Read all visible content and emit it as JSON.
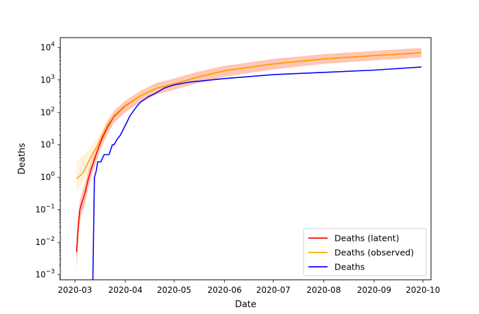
{
  "chart_data": {
    "type": "line",
    "xlabel": "Date",
    "ylabel": "Deaths",
    "yscale": "log",
    "ylim": [
      0.0007,
      20000
    ],
    "xlim": [
      "2020-02-21",
      "2020-10-06"
    ],
    "x_ticks": [
      "2020-03-01",
      "2020-04-01",
      "2020-05-01",
      "2020-06-01",
      "2020-07-01",
      "2020-08-01",
      "2020-09-01",
      "2020-10-01"
    ],
    "x_tick_labels": [
      "2020-03",
      "2020-04",
      "2020-05",
      "2020-06",
      "2020-07",
      "2020-08",
      "2020-09",
      "2020-10"
    ],
    "y_ticks": [
      0.001,
      0.01,
      0.1,
      1,
      10,
      100,
      1000,
      10000
    ],
    "y_tick_labels": [
      {
        "base": "10",
        "exp": "−3"
      },
      {
        "base": "10",
        "exp": "−2"
      },
      {
        "base": "10",
        "exp": "−1"
      },
      {
        "base": "10",
        "exp": "0"
      },
      {
        "base": "10",
        "exp": "1"
      },
      {
        "base": "10",
        "exp": "2"
      },
      {
        "base": "10",
        "exp": "3"
      },
      {
        "base": "10",
        "exp": "4"
      }
    ],
    "grid": false,
    "legend_position": "bottom-right",
    "series": [
      {
        "name": "Deaths (latent)",
        "color": "#ff0000",
        "band_color": "#ff5a2a",
        "band_opacity": 0.35,
        "x": [
          "2020-03-02",
          "2020-03-03",
          "2020-03-04",
          "2020-03-05",
          "2020-03-07",
          "2020-03-09",
          "2020-03-11",
          "2020-03-14",
          "2020-03-17",
          "2020-03-21",
          "2020-03-25",
          "2020-04-01",
          "2020-04-10",
          "2020-04-20",
          "2020-05-01",
          "2020-05-15",
          "2020-06-01",
          "2020-07-01",
          "2020-08-01",
          "2020-09-01",
          "2020-09-30"
        ],
        "y": [
          0.005,
          0.03,
          0.1,
          0.15,
          0.3,
          0.8,
          1.8,
          5,
          13,
          35,
          75,
          160,
          320,
          550,
          750,
          1200,
          1900,
          3100,
          4400,
          5600,
          6800
        ],
        "lower": [
          0.0014,
          0.01,
          0.04,
          0.07,
          0.15,
          0.4,
          1.0,
          3,
          8,
          22,
          48,
          100,
          200,
          350,
          500,
          780,
          1250,
          2100,
          3100,
          4000,
          4900
        ],
        "upper": [
          0.012,
          0.07,
          0.2,
          0.3,
          0.6,
          1.5,
          3.2,
          8,
          20,
          55,
          110,
          230,
          450,
          800,
          1100,
          1750,
          2700,
          4400,
          6200,
          7800,
          9600
        ]
      },
      {
        "name": "Deaths (observed)",
        "color": "#ffa500",
        "band_color": "#ffd9a0",
        "band_opacity": 0.35,
        "x": [
          "2020-03-02",
          "2020-03-04",
          "2020-03-06",
          "2020-03-08",
          "2020-03-10",
          "2020-03-12",
          "2020-03-14",
          "2020-03-17",
          "2020-03-21",
          "2020-03-25",
          "2020-04-01",
          "2020-04-10",
          "2020-04-20",
          "2020-05-01",
          "2020-05-15",
          "2020-06-01",
          "2020-07-01",
          "2020-08-01",
          "2020-09-01",
          "2020-09-30"
        ],
        "y": [
          0.9,
          1.1,
          1.4,
          2.2,
          3.5,
          5.5,
          8,
          16,
          40,
          80,
          165,
          320,
          550,
          750,
          1200,
          1900,
          3100,
          4400,
          5600,
          6800
        ],
        "lower": [
          0.4,
          0.5,
          0.7,
          1.2,
          2.0,
          3.4,
          5.5,
          12,
          30,
          62,
          130,
          260,
          450,
          620,
          1000,
          1600,
          2700,
          3800,
          4900,
          5900
        ],
        "upper": [
          3.2,
          3.8,
          4.5,
          6,
          8,
          11,
          14,
          24,
          55,
          100,
          205,
          390,
          670,
          900,
          1450,
          2250,
          3600,
          5000,
          6400,
          7800
        ]
      },
      {
        "name": "Deaths",
        "color": "#0000ff",
        "x": [
          "2020-03-12",
          "2020-03-13",
          "2020-03-14",
          "2020-03-15",
          "2020-03-16",
          "2020-03-17",
          "2020-03-18",
          "2020-03-19",
          "2020-03-20",
          "2020-03-22",
          "2020-03-24",
          "2020-03-25",
          "2020-03-27",
          "2020-03-29",
          "2020-04-01",
          "2020-04-04",
          "2020-04-07",
          "2020-04-10",
          "2020-04-15",
          "2020-04-20",
          "2020-04-25",
          "2020-05-01",
          "2020-05-10",
          "2020-05-20",
          "2020-06-01",
          "2020-06-15",
          "2020-07-01",
          "2020-08-01",
          "2020-09-01",
          "2020-09-30"
        ],
        "y": [
          0.0007,
          1,
          1.5,
          3,
          3,
          3,
          4,
          5,
          5,
          5,
          10,
          10,
          15,
          20,
          40,
          80,
          130,
          200,
          300,
          400,
          560,
          700,
          850,
          950,
          1100,
          1250,
          1450,
          1700,
          2000,
          2500
        ]
      }
    ]
  }
}
